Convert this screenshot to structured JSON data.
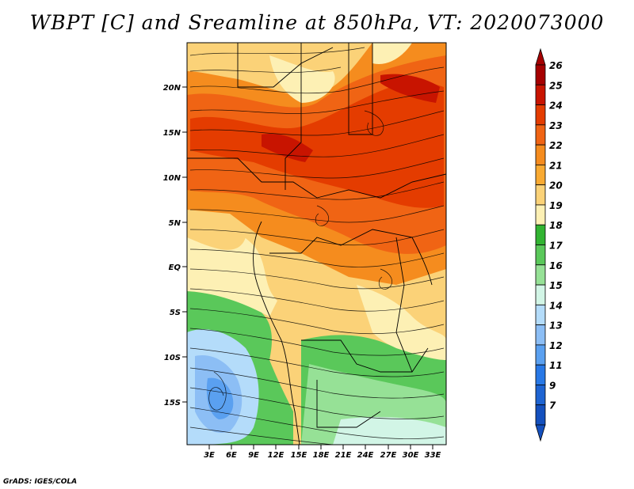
{
  "title": "WBPT [C] and Sreamline at 850hPa, VT: 2020073000",
  "credit": "GrADS: IGES/COLA",
  "lat_ticks": [
    "20N",
    "15N",
    "10N",
    "5N",
    "EQ",
    "5S",
    "10S",
    "15S"
  ],
  "lon_ticks": [
    "3E",
    "6E",
    "9E",
    "12E",
    "15E",
    "18E",
    "21E",
    "24E",
    "27E",
    "30E",
    "33E"
  ],
  "colorbar": {
    "labels": [
      "26",
      "25",
      "24",
      "23",
      "22",
      "21",
      "20",
      "19",
      "18",
      "17",
      "16",
      "15",
      "14",
      "13",
      "12",
      "11",
      "9",
      "7"
    ],
    "colors": [
      "#a50000",
      "#c81400",
      "#e43c00",
      "#f06414",
      "#f58c1e",
      "#f9aa32",
      "#fbd278",
      "#fdf0b4",
      "#32b432",
      "#5ac85a",
      "#96e196",
      "#d2f5e6",
      "#b4dcfa",
      "#8cbef5",
      "#5aa0f0",
      "#2878e6",
      "#1e64d2",
      "#1450be"
    ]
  },
  "map": {
    "variable": "Wet-bulb potential temperature",
    "level": "850hPa",
    "valid_time": "2020073000"
  }
}
